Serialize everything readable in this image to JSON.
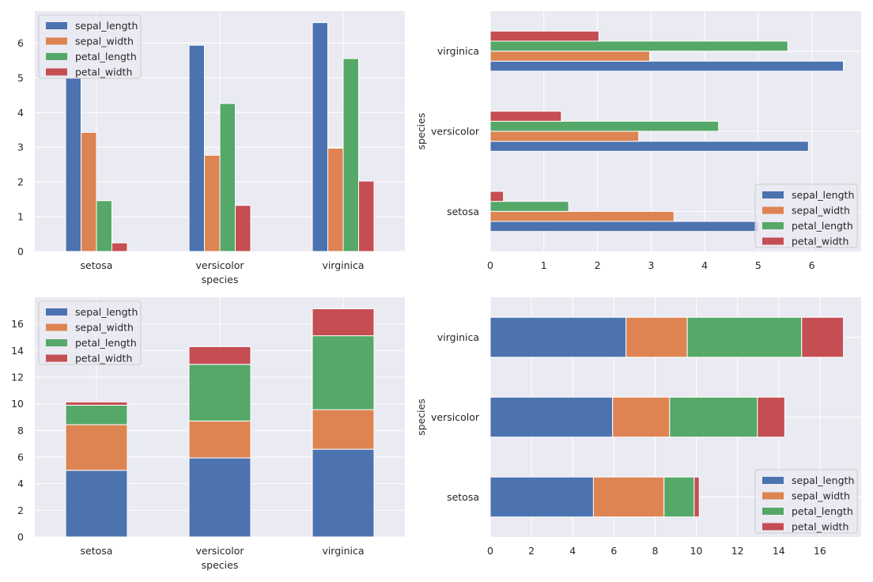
{
  "colors": {
    "sepal_length": "#4c72b0",
    "sepal_width": "#dd8452",
    "petal_length": "#55a868",
    "petal_width": "#c44e52",
    "axes_background": "#eaeaf2",
    "grid": "#ffffff"
  },
  "chart_data": [
    {
      "type": "bar",
      "orientation": "vertical",
      "stacked": false,
      "categories": [
        "setosa",
        "versicolor",
        "virginica"
      ],
      "series": [
        {
          "name": "sepal_length",
          "values": [
            5.006,
            5.936,
            6.588
          ]
        },
        {
          "name": "sepal_width",
          "values": [
            3.428,
            2.77,
            2.974
          ]
        },
        {
          "name": "petal_length",
          "values": [
            1.462,
            4.26,
            5.552
          ]
        },
        {
          "name": "petal_width",
          "values": [
            0.246,
            1.326,
            2.026
          ]
        }
      ],
      "xlabel": "species",
      "ylabel": "",
      "ylim": [
        0,
        6.92
      ],
      "yticks": [
        0,
        1,
        2,
        3,
        4,
        5,
        6
      ],
      "grid": true,
      "legend": "upper left"
    },
    {
      "type": "bar",
      "orientation": "horizontal",
      "stacked": false,
      "categories": [
        "setosa",
        "versicolor",
        "virginica"
      ],
      "series": [
        {
          "name": "sepal_length",
          "values": [
            5.006,
            5.936,
            6.588
          ]
        },
        {
          "name": "sepal_width",
          "values": [
            3.428,
            2.77,
            2.974
          ]
        },
        {
          "name": "petal_length",
          "values": [
            1.462,
            4.26,
            5.552
          ]
        },
        {
          "name": "petal_width",
          "values": [
            0.246,
            1.326,
            2.026
          ]
        }
      ],
      "xlabel": "",
      "ylabel": "species",
      "xlim": [
        0,
        6.92
      ],
      "xticks": [
        0,
        1,
        2,
        3,
        4,
        5,
        6
      ],
      "grid": true,
      "legend": "lower right"
    },
    {
      "type": "bar",
      "orientation": "vertical",
      "stacked": true,
      "categories": [
        "setosa",
        "versicolor",
        "virginica"
      ],
      "series": [
        {
          "name": "sepal_length",
          "values": [
            5.006,
            5.936,
            6.588
          ]
        },
        {
          "name": "sepal_width",
          "values": [
            3.428,
            2.77,
            2.974
          ]
        },
        {
          "name": "petal_length",
          "values": [
            1.462,
            4.26,
            5.552
          ]
        },
        {
          "name": "petal_width",
          "values": [
            0.246,
            1.326,
            2.026
          ]
        }
      ],
      "xlabel": "species",
      "ylabel": "",
      "ylim": [
        0,
        18.0
      ],
      "yticks": [
        0,
        2,
        4,
        6,
        8,
        10,
        12,
        14,
        16
      ],
      "grid": true,
      "legend": "upper left"
    },
    {
      "type": "bar",
      "orientation": "horizontal",
      "stacked": true,
      "categories": [
        "setosa",
        "versicolor",
        "virginica"
      ],
      "series": [
        {
          "name": "sepal_length",
          "values": [
            5.006,
            5.936,
            6.588
          ]
        },
        {
          "name": "sepal_width",
          "values": [
            3.428,
            2.77,
            2.974
          ]
        },
        {
          "name": "petal_length",
          "values": [
            1.462,
            4.26,
            5.552
          ]
        },
        {
          "name": "petal_width",
          "values": [
            0.246,
            1.326,
            2.026
          ]
        }
      ],
      "xlabel": "",
      "ylabel": "species",
      "xlim": [
        0,
        18.0
      ],
      "xticks": [
        0,
        2,
        4,
        6,
        8,
        10,
        12,
        14,
        16
      ],
      "grid": true,
      "legend": "lower right"
    }
  ]
}
